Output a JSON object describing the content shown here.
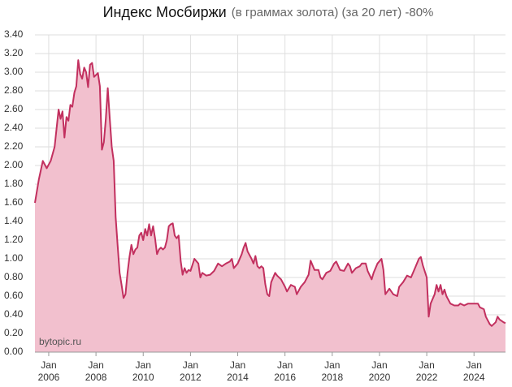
{
  "chart_data": {
    "type": "area",
    "title": "Индекс Мосбиржи",
    "subtitle": "(в граммах золота) (за 20 лет) -80%",
    "annotation": "bytopic.ru",
    "color": "#c2305f",
    "fill_color": "#f2c0ce",
    "grid": true,
    "xlim": [
      "2005-06",
      "2025-05"
    ],
    "ylim": [
      0,
      3.4
    ],
    "yticks": [
      {
        "value": 0,
        "label": "0.00"
      },
      {
        "value": 0.2,
        "label": "0.20"
      },
      {
        "value": 0.4,
        "label": "0.40"
      },
      {
        "value": 0.6,
        "label": "0.60"
      },
      {
        "value": 0.8,
        "label": "0.80"
      },
      {
        "value": 1.0,
        "label": "1.00"
      },
      {
        "value": 1.2,
        "label": "1.20"
      },
      {
        "value": 1.4,
        "label": "1.40"
      },
      {
        "value": 1.6,
        "label": "1.60"
      },
      {
        "value": 1.8,
        "label": "1.80"
      },
      {
        "value": 2.0,
        "label": "2.00"
      },
      {
        "value": 2.2,
        "label": "2.20"
      },
      {
        "value": 2.4,
        "label": "2.40"
      },
      {
        "value": 2.6,
        "label": "2.60"
      },
      {
        "value": 2.8,
        "label": "2.80"
      },
      {
        "value": 3.0,
        "label": "3.00"
      },
      {
        "value": 3.2,
        "label": "3.20"
      },
      {
        "value": 3.4,
        "label": "3.40"
      }
    ],
    "xticks": [
      {
        "value": "2006-01",
        "label": "Jan 2006"
      },
      {
        "value": "2008-01",
        "label": "Jan 2008"
      },
      {
        "value": "2010-01",
        "label": "Jan 2010"
      },
      {
        "value": "2012-01",
        "label": "Jan 2012"
      },
      {
        "value": "2014-01",
        "label": "Jan 2014"
      },
      {
        "value": "2016-01",
        "label": "Jan 2016"
      },
      {
        "value": "2018-01",
        "label": "Jan 2018"
      },
      {
        "value": "2020-01",
        "label": "Jan 2020"
      },
      {
        "value": "2022-01",
        "label": "Jan 2022"
      },
      {
        "value": "2024-01",
        "label": "Jan 2024"
      }
    ],
    "x": [
      "2005-06",
      "2005-08",
      "2005-10",
      "2005-12",
      "2006-02",
      "2006-04",
      "2006-06",
      "2006-07",
      "2006-08",
      "2006-09",
      "2006-10",
      "2006-11",
      "2006-12",
      "2007-01",
      "2007-02",
      "2007-03",
      "2007-04",
      "2007-05",
      "2007-06",
      "2007-07",
      "2007-08",
      "2007-09",
      "2007-10",
      "2007-11",
      "2007-12",
      "2008-01",
      "2008-02",
      "2008-03",
      "2008-04",
      "2008-05",
      "2008-06",
      "2008-07",
      "2008-08",
      "2008-09",
      "2008-10",
      "2008-11",
      "2008-12",
      "2009-01",
      "2009-02",
      "2009-03",
      "2009-04",
      "2009-05",
      "2009-06",
      "2009-07",
      "2009-08",
      "2009-09",
      "2009-10",
      "2009-11",
      "2009-12",
      "2010-01",
      "2010-02",
      "2010-03",
      "2010-04",
      "2010-05",
      "2010-06",
      "2010-07",
      "2010-08",
      "2010-09",
      "2010-10",
      "2010-11",
      "2010-12",
      "2011-01",
      "2011-02",
      "2011-03",
      "2011-04",
      "2011-05",
      "2011-06",
      "2011-07",
      "2011-08",
      "2011-09",
      "2011-10",
      "2011-11",
      "2011-12",
      "2012-01",
      "2012-03",
      "2012-05",
      "2012-06",
      "2012-07",
      "2012-09",
      "2012-11",
      "2013-01",
      "2013-03",
      "2013-05",
      "2013-07",
      "2013-09",
      "2013-10",
      "2013-11",
      "2014-01",
      "2014-03",
      "2014-04",
      "2014-05",
      "2014-06",
      "2014-08",
      "2014-09",
      "2014-10",
      "2014-11",
      "2014-12",
      "2015-01",
      "2015-02",
      "2015-03",
      "2015-04",
      "2015-05",
      "2015-06",
      "2015-08",
      "2015-09",
      "2015-11",
      "2016-01",
      "2016-02",
      "2016-04",
      "2016-06",
      "2016-07",
      "2016-09",
      "2016-11",
      "2017-01",
      "2017-02",
      "2017-04",
      "2017-06",
      "2017-07",
      "2017-08",
      "2017-10",
      "2017-12",
      "2018-02",
      "2018-03",
      "2018-05",
      "2018-07",
      "2018-09",
      "2018-10",
      "2018-11",
      "2019-01",
      "2019-03",
      "2019-04",
      "2019-06",
      "2019-07",
      "2019-09",
      "2019-10",
      "2019-12",
      "2020-02",
      "2020-03",
      "2020-04",
      "2020-06",
      "2020-08",
      "2020-10",
      "2020-11",
      "2021-01",
      "2021-03",
      "2021-05",
      "2021-07",
      "2021-09",
      "2021-10",
      "2021-11",
      "2022-01",
      "2022-02",
      "2022-03",
      "2022-05",
      "2022-06",
      "2022-07",
      "2022-08",
      "2022-09",
      "2022-10",
      "2022-11",
      "2023-01",
      "2023-03",
      "2023-05",
      "2023-06",
      "2023-08",
      "2023-10",
      "2024-01",
      "2024-03",
      "2024-04",
      "2024-06",
      "2024-07",
      "2024-09",
      "2024-10",
      "2024-12",
      "2025-01",
      "2025-02",
      "2025-04",
      "2025-05"
    ],
    "values": [
      1.6,
      1.85,
      2.05,
      1.97,
      2.05,
      2.2,
      2.6,
      2.5,
      2.58,
      2.3,
      2.52,
      2.48,
      2.65,
      2.63,
      2.78,
      2.85,
      3.13,
      2.98,
      2.93,
      3.05,
      3.0,
      2.84,
      3.08,
      3.1,
      2.95,
      2.97,
      2.99,
      2.85,
      2.17,
      2.25,
      2.5,
      2.83,
      2.5,
      2.2,
      2.05,
      1.45,
      1.15,
      0.85,
      0.72,
      0.58,
      0.62,
      0.85,
      1.02,
      1.15,
      1.05,
      1.1,
      1.12,
      1.25,
      1.28,
      1.2,
      1.32,
      1.25,
      1.37,
      1.25,
      1.35,
      1.22,
      1.05,
      1.1,
      1.12,
      1.1,
      1.12,
      1.2,
      1.35,
      1.37,
      1.38,
      1.25,
      1.22,
      1.25,
      0.98,
      0.83,
      0.9,
      0.85,
      0.88,
      0.87,
      1.0,
      0.95,
      0.8,
      0.85,
      0.82,
      0.83,
      0.87,
      0.95,
      0.92,
      0.95,
      0.97,
      1.0,
      0.9,
      0.95,
      1.05,
      1.12,
      1.17,
      1.08,
      1.0,
      0.95,
      1.03,
      0.92,
      0.9,
      0.92,
      0.9,
      0.73,
      0.62,
      0.6,
      0.75,
      0.85,
      0.82,
      0.78,
      0.7,
      0.65,
      0.72,
      0.7,
      0.62,
      0.7,
      0.75,
      0.83,
      0.98,
      0.88,
      0.88,
      0.8,
      0.78,
      0.85,
      0.87,
      0.95,
      0.97,
      0.88,
      0.87,
      0.95,
      0.92,
      0.85,
      0.9,
      0.92,
      0.95,
      0.95,
      0.87,
      0.78,
      0.85,
      0.95,
      1.0,
      0.88,
      0.62,
      0.68,
      0.62,
      0.6,
      0.7,
      0.75,
      0.82,
      0.8,
      0.9,
      1.0,
      1.02,
      0.93,
      0.8,
      0.38,
      0.52,
      0.62,
      0.72,
      0.65,
      0.72,
      0.62,
      0.67,
      0.6,
      0.52,
      0.5,
      0.5,
      0.52,
      0.5,
      0.52,
      0.52,
      0.52,
      0.48,
      0.46,
      0.38,
      0.3,
      0.28,
      0.32,
      0.38,
      0.35,
      0.32,
      0.31
    ]
  }
}
